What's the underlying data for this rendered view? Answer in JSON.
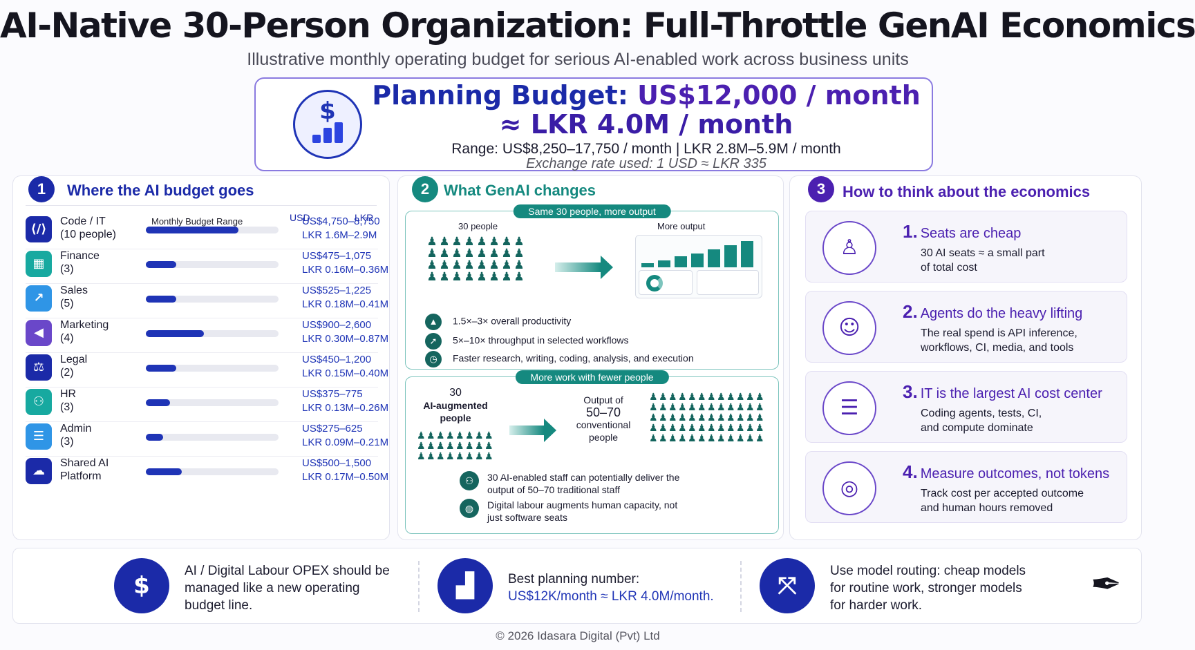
{
  "title": "AI-Native 30-Person Organization: Full-Throttle GenAI Economics",
  "subtitle": "Illustrative monthly operating budget for serious AI-enabled work across business units",
  "budget": {
    "label": "Planning Budget:",
    "usd": "US$12,000 / month",
    "lkr": "≈ LKR 4.0M / month",
    "range": "Range: US$8,250–17,750 / month   |   LKR 2.8M–5.9M / month",
    "exchange": "Exchange rate used: 1 USD ≈ LKR 335",
    "icon": "dollar-chart-icon"
  },
  "panel1": {
    "number": "1",
    "title": "Where the AI budget goes",
    "col_range": "Monthly Budget Range",
    "col_usd": "USD",
    "col_lkr": "LKR",
    "rows": [
      {
        "name": "Code / IT",
        "sub": "(10 people)",
        "usd": "US$4,750–8,750",
        "lkr": "LKR 1.6M–2.9M",
        "bar_fraction": 0.7,
        "icon": "code-icon",
        "color": "#1b2aa8"
      },
      {
        "name": "Finance",
        "sub": "(3)",
        "usd": "US$475–1,075",
        "lkr": "LKR 0.16M–0.36M",
        "bar_fraction": 0.23,
        "icon": "calculator-icon",
        "color": "#17a9a0"
      },
      {
        "name": "Sales",
        "sub": "(5)",
        "usd": "US$525–1,225",
        "lkr": "LKR 0.18M–0.41M",
        "bar_fraction": 0.23,
        "icon": "chart-up-icon",
        "color": "#2f95e6"
      },
      {
        "name": "Marketing",
        "sub": "(4)",
        "usd": "US$900–2,600",
        "lkr": "LKR 0.30M–0.87M",
        "bar_fraction": 0.44,
        "icon": "megaphone-icon",
        "color": "#6a47c9"
      },
      {
        "name": "Legal",
        "sub": "(2)",
        "usd": "US$450–1,200",
        "lkr": "LKR 0.15M–0.40M",
        "bar_fraction": 0.23,
        "icon": "scales-icon",
        "color": "#1b2aa8"
      },
      {
        "name": "HR",
        "sub": "(3)",
        "usd": "US$375–775",
        "lkr": "LKR 0.13M–0.26M",
        "bar_fraction": 0.18,
        "icon": "people-icon",
        "color": "#17a9a0"
      },
      {
        "name": "Admin",
        "sub": "(3)",
        "usd": "US$275–625",
        "lkr": "LKR 0.09M–0.21M",
        "bar_fraction": 0.13,
        "icon": "clipboard-icon",
        "color": "#2f95e6"
      },
      {
        "name": "Shared AI",
        "sub": "Platform",
        "usd": "US$500–1,500",
        "lkr": "LKR 0.17M–0.50M",
        "bar_fraction": 0.27,
        "icon": "cloud-icon",
        "color": "#1b2aa8"
      }
    ]
  },
  "panel2": {
    "number": "2",
    "title": "What GenAI changes",
    "section_a": {
      "pill": "Same 30 people, more output",
      "people_label": "30 people",
      "output_label": "More output",
      "benefits": [
        {
          "text": "1.5×–3× overall productivity",
          "icon": "chart-icon"
        },
        {
          "text": "5×–10× throughput in selected workflows",
          "icon": "rocket-icon"
        },
        {
          "text": "Faster research, writing, coding, analysis, and execution",
          "icon": "clock-icon"
        }
      ]
    },
    "section_b": {
      "pill": "More work with fewer people",
      "left_num": "30",
      "left_label": "AI-augmented people",
      "mid_label1": "Output of",
      "mid_num": "50–70",
      "mid_label2": "conventional people",
      "notes": [
        {
          "text": "30 AI-enabled staff can potentially deliver the output of 50–70 traditional staff",
          "icon": "team-icon"
        },
        {
          "text": "Digital labour augments human capacity, not just software seats",
          "icon": "globe-icon"
        }
      ]
    }
  },
  "panel3": {
    "number": "3",
    "title": "How to think about the economics",
    "cards": [
      {
        "num": "1.",
        "title": "Seats are cheap",
        "desc1": "30 AI seats ≈ a small part",
        "desc2": "of total cost",
        "icon": "chair-icon"
      },
      {
        "num": "2.",
        "title": "Agents do the heavy lifting",
        "desc1": "The real spend is API inference,",
        "desc2": "workflows, CI, media, and tools",
        "icon": "robot-icon"
      },
      {
        "num": "3.",
        "title": "IT is the largest AI cost center",
        "desc1": "Coding agents, tests, CI,",
        "desc2": "and compute dominate",
        "icon": "server-icon"
      },
      {
        "num": "4.",
        "title": "Measure outcomes, not tokens",
        "desc1": "Track cost per accepted outcome",
        "desc2": "and human hours removed",
        "icon": "target-icon"
      }
    ]
  },
  "footer": {
    "item1": {
      "line1": "AI / Digital Labour OPEX should be",
      "line2": "managed like a new operating",
      "line3": "budget line.",
      "icon": "invoice-icon"
    },
    "item2": {
      "line1": "Best planning number:",
      "line2": "US$12K/month ≈ LKR 4.0M/month.",
      "icon": "growth-chart-icon"
    },
    "item3": {
      "line1": "Use model routing: cheap models",
      "line2": "for routine work, stronger models",
      "line3": "for harder work.",
      "icon": "routing-icon"
    },
    "pen_icon": "pen-icon"
  },
  "copyright": "© 2026 Idasara Digital (Pvt) Ltd"
}
